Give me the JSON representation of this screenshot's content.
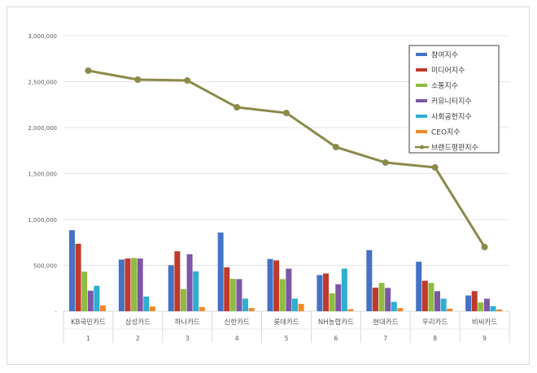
{
  "chart_data": {
    "type": "bar",
    "categories": [
      "KB국민카드",
      "삼성카드",
      "하나카드",
      "신한카드",
      "롯데카드",
      "NH농협카드",
      "현대카드",
      "우리카드",
      "비씨카드"
    ],
    "category_numbers": [
      "1",
      "2",
      "3",
      "4",
      "5",
      "6",
      "7",
      "8",
      "9"
    ],
    "ylim": [
      0,
      3000000
    ],
    "yticks": [
      0,
      500000,
      1000000,
      1500000,
      2000000,
      2500000,
      3000000
    ],
    "ytick_labels": [
      "-",
      "500,000",
      "1,000,000",
      "1,500,000",
      "2,000,000",
      "2,500,000",
      "3,000,000"
    ],
    "grid": true,
    "legend": "top-right",
    "series": [
      {
        "name": "참여지수",
        "type": "bar",
        "color": "#4472c4",
        "values": [
          883000,
          563000,
          501000,
          857000,
          569000,
          394000,
          665000,
          539000,
          172000
        ]
      },
      {
        "name": "미디어지수",
        "type": "bar",
        "color": "#c0392b",
        "values": [
          735000,
          574000,
          653000,
          478000,
          554000,
          411000,
          257000,
          332000,
          219000
        ]
      },
      {
        "name": "소통지수",
        "type": "bar",
        "color": "#8fbc3f",
        "values": [
          431000,
          580000,
          242000,
          353000,
          350000,
          195000,
          309000,
          309000,
          96000
        ]
      },
      {
        "name": "커뮤니티지수",
        "type": "bar",
        "color": "#7b57a6",
        "values": [
          224000,
          574000,
          621000,
          350000,
          464000,
          294000,
          254000,
          219000,
          137000
        ]
      },
      {
        "name": "사회공헌지수",
        "type": "bar",
        "color": "#2eaed0",
        "values": [
          277000,
          160000,
          434000,
          137000,
          137000,
          464000,
          102000,
          137000,
          55000
        ]
      },
      {
        "name": "CEO지수",
        "type": "bar",
        "color": "#f0892b",
        "values": [
          64000,
          52000,
          47000,
          35000,
          79000,
          23000,
          35000,
          29000,
          20000
        ]
      },
      {
        "name": "브랜드평판지수",
        "type": "line",
        "color": "#8b8a4a",
        "values": [
          2620000,
          2522000,
          2513000,
          2221000,
          2159000,
          1788000,
          1619000,
          1566000,
          699000
        ]
      }
    ]
  }
}
